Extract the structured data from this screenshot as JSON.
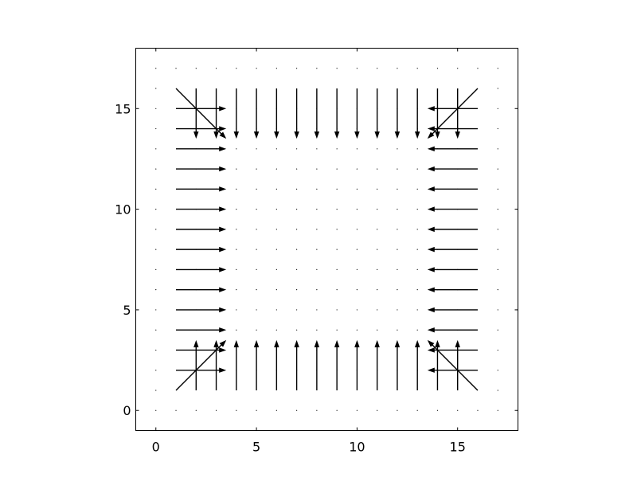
{
  "chart_data": {
    "type": "quiver",
    "title": "",
    "xlabel": "",
    "ylabel": "",
    "xlim": [
      -1,
      18
    ],
    "ylim": [
      -1,
      18
    ],
    "grid": false,
    "aspect": "equal",
    "xticks": [
      0,
      5,
      10,
      15
    ],
    "yticks": [
      0,
      5,
      10,
      15
    ],
    "xtick_labels": [
      "0",
      "5",
      "10",
      "15"
    ],
    "ytick_labels": [
      "0",
      "5",
      "10",
      "15"
    ],
    "grid_points": {
      "x_start": 0,
      "x_end": 17,
      "y_start": 0,
      "y_end": 17,
      "step": 1
    },
    "field_description": "Vectors point inward from the boundary; interior vectors are zero",
    "vector_length_units": 2.5,
    "colors": {
      "arrow": "#000000",
      "background": "#ffffff"
    }
  }
}
